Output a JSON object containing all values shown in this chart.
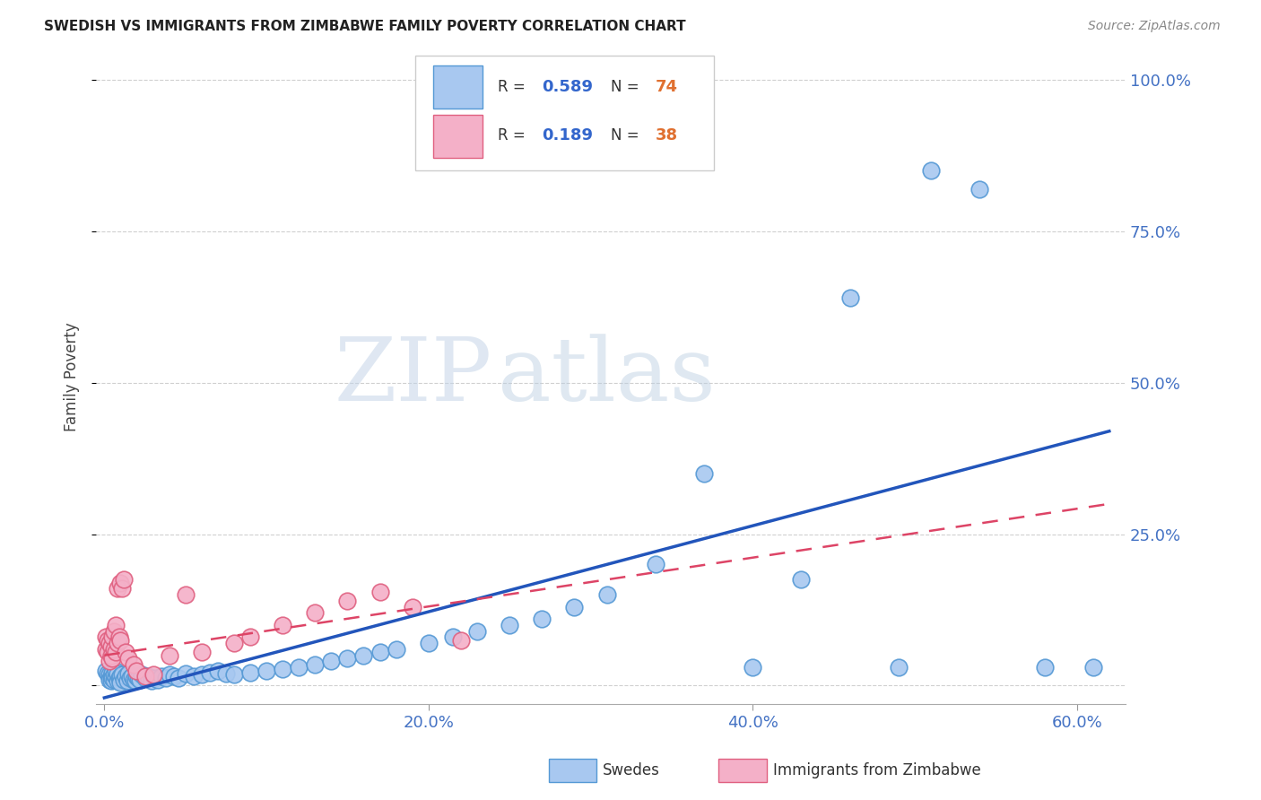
{
  "title": "SWEDISH VS IMMIGRANTS FROM ZIMBABWE FAMILY POVERTY CORRELATION CHART",
  "source": "Source: ZipAtlas.com",
  "ylabel": "Family Poverty",
  "xlim": [
    -0.005,
    0.63
  ],
  "ylim": [
    -0.03,
    1.05
  ],
  "watermark_zip": "ZIP",
  "watermark_atlas": "atlas",
  "swedes_color": "#a8c8f0",
  "swedes_edge_color": "#5599d5",
  "zimbabwe_color": "#f4b0c8",
  "zimbabwe_edge_color": "#e06080",
  "regression_swedes_color": "#2255bb",
  "regression_zimbabwe_color": "#dd4466",
  "tick_color": "#4472c4",
  "grid_color": "#d0d0d0",
  "swedes_x": [
    0.001,
    0.002,
    0.003,
    0.003,
    0.004,
    0.004,
    0.005,
    0.005,
    0.006,
    0.006,
    0.007,
    0.007,
    0.008,
    0.008,
    0.009,
    0.01,
    0.01,
    0.011,
    0.012,
    0.013,
    0.014,
    0.015,
    0.016,
    0.017,
    0.018,
    0.019,
    0.02,
    0.021,
    0.022,
    0.023,
    0.025,
    0.027,
    0.029,
    0.031,
    0.033,
    0.035,
    0.038,
    0.04,
    0.043,
    0.046,
    0.05,
    0.055,
    0.06,
    0.065,
    0.07,
    0.075,
    0.08,
    0.09,
    0.1,
    0.11,
    0.12,
    0.13,
    0.14,
    0.15,
    0.16,
    0.17,
    0.18,
    0.2,
    0.215,
    0.23,
    0.25,
    0.27,
    0.29,
    0.31,
    0.34,
    0.37,
    0.4,
    0.43,
    0.46,
    0.49,
    0.51,
    0.54,
    0.58,
    0.61
  ],
  "swedes_y": [
    0.025,
    0.02,
    0.018,
    0.01,
    0.015,
    0.008,
    0.022,
    0.012,
    0.01,
    0.018,
    0.015,
    0.025,
    0.008,
    0.02,
    0.012,
    0.015,
    0.005,
    0.018,
    0.01,
    0.015,
    0.008,
    0.02,
    0.012,
    0.015,
    0.01,
    0.008,
    0.015,
    0.012,
    0.01,
    0.018,
    0.012,
    0.015,
    0.008,
    0.012,
    0.01,
    0.015,
    0.012,
    0.018,
    0.015,
    0.012,
    0.02,
    0.015,
    0.018,
    0.022,
    0.025,
    0.02,
    0.018,
    0.022,
    0.025,
    0.028,
    0.03,
    0.035,
    0.04,
    0.045,
    0.05,
    0.055,
    0.06,
    0.07,
    0.08,
    0.09,
    0.1,
    0.11,
    0.13,
    0.15,
    0.2,
    0.35,
    0.03,
    0.175,
    0.64,
    0.03,
    0.85,
    0.82,
    0.03,
    0.03
  ],
  "zimbabwe_x": [
    0.001,
    0.001,
    0.002,
    0.002,
    0.003,
    0.003,
    0.004,
    0.004,
    0.005,
    0.005,
    0.006,
    0.006,
    0.007,
    0.007,
    0.008,
    0.008,
    0.009,
    0.01,
    0.01,
    0.011,
    0.012,
    0.013,
    0.015,
    0.018,
    0.02,
    0.025,
    0.03,
    0.04,
    0.05,
    0.06,
    0.08,
    0.09,
    0.11,
    0.13,
    0.15,
    0.17,
    0.19,
    0.22
  ],
  "zimbabwe_y": [
    0.06,
    0.08,
    0.055,
    0.075,
    0.04,
    0.07,
    0.065,
    0.05,
    0.08,
    0.045,
    0.06,
    0.09,
    0.055,
    0.1,
    0.07,
    0.16,
    0.08,
    0.075,
    0.17,
    0.16,
    0.175,
    0.055,
    0.045,
    0.035,
    0.025,
    0.015,
    0.018,
    0.05,
    0.15,
    0.055,
    0.07,
    0.08,
    0.1,
    0.12,
    0.14,
    0.155,
    0.13,
    0.075
  ],
  "swedes_line_x": [
    0.0,
    0.62
  ],
  "swedes_line_y": [
    -0.02,
    0.42
  ],
  "zimbabwe_line_x": [
    0.0,
    0.62
  ],
  "zimbabwe_line_y": [
    0.05,
    0.3
  ]
}
